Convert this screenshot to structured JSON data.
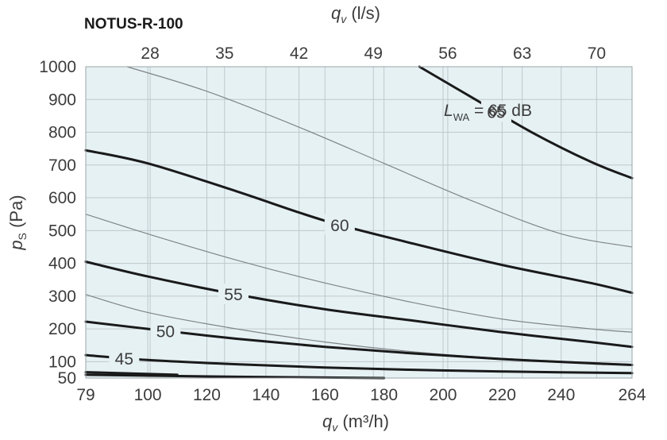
{
  "chart_data": {
    "type": "line",
    "title": "NOTUS-R-100",
    "xlabel": {
      "main": "q",
      "sub": "v",
      "unit": " (m³/h)"
    },
    "x2label": {
      "main": "q",
      "sub": "v",
      "unit": " (l/s)"
    },
    "ylabel": {
      "main": "p",
      "sub": "S",
      "unit": " (Pa)"
    },
    "xlim": [
      79,
      264
    ],
    "ylim": [
      50,
      1000
    ],
    "x_ticks": [
      {
        "value": 79,
        "label": "79"
      },
      {
        "value": 100,
        "label": "100"
      },
      {
        "value": 120,
        "label": "120"
      },
      {
        "value": 140,
        "label": "140"
      },
      {
        "value": 160,
        "label": "160"
      },
      {
        "value": 180,
        "label": "180"
      },
      {
        "value": 200,
        "label": "200"
      },
      {
        "value": 220,
        "label": "220"
      },
      {
        "value": 240,
        "label": "240"
      },
      {
        "value": 264,
        "label": "264"
      }
    ],
    "x2_ticks": [
      {
        "value": 28,
        "label": "28"
      },
      {
        "value": 35,
        "label": "35"
      },
      {
        "value": 42,
        "label": "42"
      },
      {
        "value": 49,
        "label": "49"
      },
      {
        "value": 56,
        "label": "56"
      },
      {
        "value": 63,
        "label": "63"
      },
      {
        "value": 70,
        "label": "70"
      }
    ],
    "y_ticks": [
      {
        "value": 50,
        "label": "50"
      },
      {
        "value": 100,
        "label": "100"
      },
      {
        "value": 200,
        "label": "200"
      },
      {
        "value": 300,
        "label": "300"
      },
      {
        "value": 400,
        "label": "400"
      },
      {
        "value": 500,
        "label": "500"
      },
      {
        "value": 600,
        "label": "600"
      },
      {
        "value": 700,
        "label": "700"
      },
      {
        "value": 800,
        "label": "800"
      },
      {
        "value": 900,
        "label": "900"
      },
      {
        "value": 1000,
        "label": "1000"
      }
    ],
    "grid": true,
    "background_color": "#e6f1f4",
    "grid_color": "#bfc9cd",
    "series": [
      {
        "name": "",
        "major": false,
        "x": [
          93,
          120,
          150,
          180,
          210,
          240,
          264
        ],
        "y": [
          1000,
          925,
          820,
          705,
          590,
          490,
          450
        ]
      },
      {
        "name": "",
        "major": false,
        "x": [
          79,
          100,
          130,
          160,
          190,
          220,
          250,
          264
        ],
        "y": [
          550,
          490,
          410,
          340,
          280,
          230,
          200,
          190
        ]
      },
      {
        "name": "",
        "major": false,
        "x": [
          79,
          100,
          130,
          160,
          190,
          220,
          264
        ],
        "y": [
          305,
          250,
          200,
          160,
          130,
          110,
          92
        ]
      },
      {
        "name": "",
        "major": true,
        "label": "65",
        "label_x": 218,
        "x": [
          192,
          210,
          230,
          250,
          264
        ],
        "y": [
          1000,
          905,
          800,
          710,
          660
        ]
      },
      {
        "name": "",
        "major": true,
        "label": "60",
        "label_x": 165,
        "x": [
          79,
          100,
          130,
          160,
          190,
          220,
          250,
          264
        ],
        "y": [
          745,
          705,
          620,
          530,
          460,
          395,
          340,
          310
        ]
      },
      {
        "name": "",
        "major": true,
        "label": "55",
        "label_x": 129,
        "x": [
          79,
          100,
          130,
          160,
          190,
          220,
          250,
          264
        ],
        "y": [
          405,
          360,
          305,
          260,
          225,
          190,
          160,
          145
        ]
      },
      {
        "name": "",
        "major": true,
        "label": "50",
        "label_x": 106,
        "x": [
          79,
          100,
          130,
          160,
          190,
          220,
          250,
          264
        ],
        "y": [
          222,
          200,
          170,
          145,
          125,
          108,
          95,
          90
        ]
      },
      {
        "name": "",
        "major": true,
        "label": "45",
        "label_x": 92,
        "x": [
          79,
          100,
          130,
          160,
          190,
          220,
          264
        ],
        "y": [
          120,
          105,
          92,
          82,
          75,
          70,
          65
        ]
      },
      {
        "name": "",
        "major": true,
        "x": [
          79,
          110
        ],
        "y": [
          68,
          60
        ]
      },
      {
        "name": "",
        "major": true,
        "x": [
          79,
          130,
          180
        ],
        "y": [
          60,
          54,
          50
        ]
      }
    ],
    "annotation": {
      "L": "L",
      "sub": "WA",
      "text": " = 65 dB"
    }
  }
}
